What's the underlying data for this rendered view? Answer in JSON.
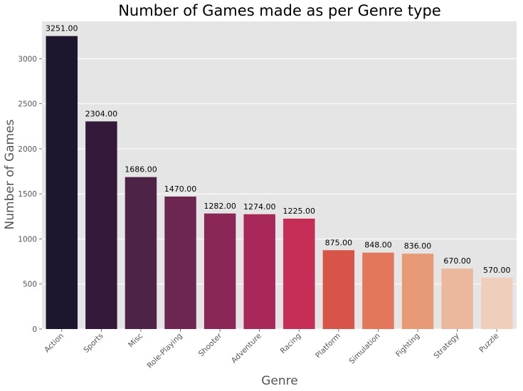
{
  "chart_data": {
    "type": "bar",
    "title": "Number of Games made as per Genre type",
    "xlabel": "Genre",
    "ylabel": "Number of Games",
    "categories": [
      "Action",
      "Sports",
      "Misc",
      "Role-Playing",
      "Shooter",
      "Adventure",
      "Racing",
      "Platform",
      "Simulation",
      "Fighting",
      "Strategy",
      "Puzzle"
    ],
    "values": [
      3251,
      2304,
      1686,
      1470,
      1282,
      1274,
      1225,
      875,
      848,
      836,
      670,
      570
    ],
    "value_labels": [
      "3251.00",
      "2304.00",
      "1686.00",
      "1470.00",
      "1282.00",
      "1274.00",
      "1225.00",
      "875.00",
      "848.00",
      "836.00",
      "670.00",
      "570.00"
    ],
    "yticks": [
      0,
      500,
      1000,
      1500,
      2000,
      2500,
      3000
    ],
    "ylim": [
      0,
      3414
    ],
    "grid": true,
    "colors": [
      "#1d162e",
      "#34193a",
      "#4d2347",
      "#6c2651",
      "#8a2757",
      "#a8285a",
      "#c62d57",
      "#d85448",
      "#e3775c",
      "#e89a76",
      "#ecb89d",
      "#efcfbb"
    ],
    "background": "#e5e5e5"
  }
}
